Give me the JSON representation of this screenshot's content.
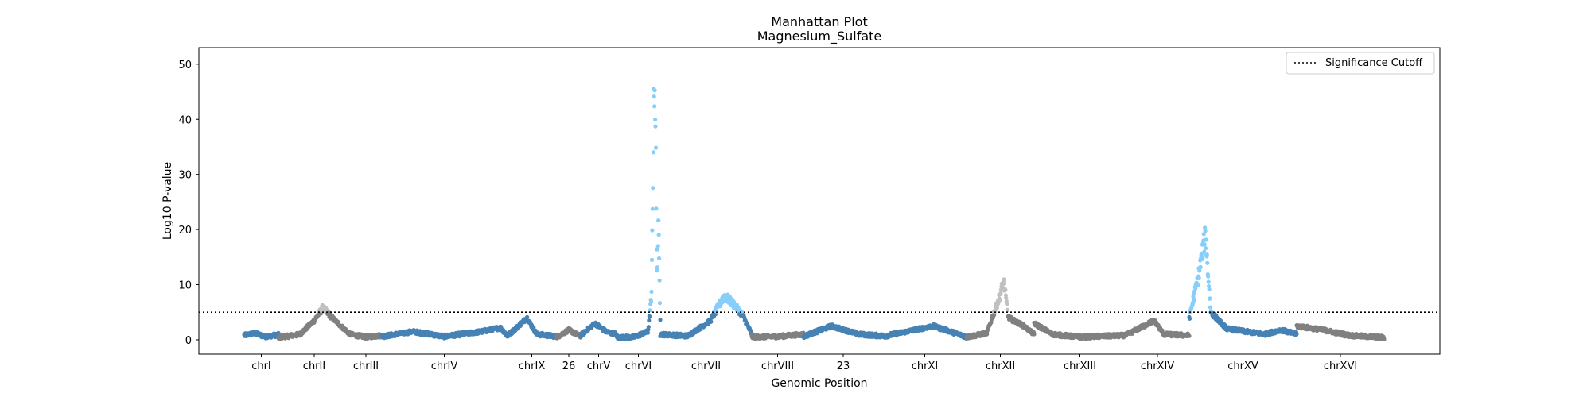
{
  "chart_data": {
    "type": "scatter",
    "title": "Manhattan Plot",
    "subtitle": "Magnesium_Sulfate",
    "xlabel": "Genomic Position",
    "ylabel": "Log10 P-value",
    "ylim": [
      -2.6,
      53
    ],
    "yticks": [
      0,
      10,
      20,
      30,
      40,
      50
    ],
    "grid": false,
    "legend": {
      "position": "top-right",
      "entries": [
        "Significance Cutoff"
      ]
    },
    "significance_cutoff": 5,
    "colors": {
      "odd_chromosome": "#4682b4",
      "even_chromosome": "#808080",
      "odd_significant": "#87cefa",
      "even_significant": "#c0c0c0",
      "cutoff_line": "#000000"
    },
    "chromosomes": [
      {
        "label": "chrI",
        "color_group": "odd",
        "profile": [
          [
            0,
            0.8
          ],
          [
            0.3,
            1.2
          ],
          [
            0.6,
            0.6
          ],
          [
            1,
            0.9
          ]
        ]
      },
      {
        "label": "chrII",
        "color_group": "even",
        "profile": [
          [
            0,
            0.4
          ],
          [
            0.3,
            1.0
          ],
          [
            0.5,
            3.5
          ],
          [
            0.62,
            5.8
          ],
          [
            0.75,
            4
          ],
          [
            1,
            1.0
          ]
        ]
      },
      {
        "label": "chrIII",
        "color_group": "even",
        "profile": [
          [
            0,
            1.0
          ],
          [
            0.5,
            0.5
          ],
          [
            1,
            0.8
          ]
        ]
      },
      {
        "label": "chrIV",
        "color_group": "odd",
        "profile": [
          [
            0,
            0.6
          ],
          [
            0.25,
            1.5
          ],
          [
            0.5,
            0.6
          ],
          [
            0.8,
            1.5
          ],
          [
            0.95,
            2.2
          ],
          [
            1,
            0.9
          ]
        ]
      },
      {
        "label": "chrIX",
        "color_group": "odd",
        "profile": [
          [
            0,
            0.6
          ],
          [
            0.25,
            2.6
          ],
          [
            0.4,
            4.0
          ],
          [
            0.6,
            1.0
          ],
          [
            1,
            0.6
          ]
        ]
      },
      {
        "label": "26",
        "color_group": "even",
        "profile": [
          [
            0,
            0.5
          ],
          [
            0.5,
            1.8
          ],
          [
            1,
            0.6
          ]
        ]
      },
      {
        "label": "chrV",
        "color_group": "odd",
        "profile": [
          [
            0,
            0.8
          ],
          [
            0.4,
            3.0
          ],
          [
            0.7,
            1.5
          ],
          [
            1,
            1.0
          ]
        ]
      },
      {
        "label": "chrVI",
        "color_group": "odd",
        "profile": [
          [
            0,
            0.4
          ],
          [
            0.4,
            0.5
          ],
          [
            0.72,
            1.5
          ],
          [
            0.8,
            8
          ],
          [
            0.86,
            48
          ],
          [
            0.89,
            42
          ],
          [
            0.92,
            12
          ],
          [
            0.96,
            20
          ],
          [
            1,
            4
          ]
        ]
      },
      {
        "label": "chrVII",
        "color_group": "odd",
        "profile": [
          [
            0,
            1.0
          ],
          [
            0.3,
            0.7
          ],
          [
            0.55,
            3.5
          ],
          [
            0.7,
            8.0
          ],
          [
            0.8,
            6.5
          ],
          [
            0.9,
            4.5
          ],
          [
            1,
            1.0
          ]
        ]
      },
      {
        "label": "chrVIII",
        "color_group": "even",
        "profile": [
          [
            0,
            0.5
          ],
          [
            0.5,
            0.6
          ],
          [
            1,
            1.0
          ]
        ]
      },
      {
        "label": "23",
        "color_group": "odd",
        "profile": [
          [
            0,
            0.6
          ],
          [
            0.35,
            2.5
          ],
          [
            0.7,
            1.0
          ],
          [
            1,
            0.7
          ]
        ]
      },
      {
        "label": "chrXI",
        "color_group": "odd",
        "profile": [
          [
            0,
            0.6
          ],
          [
            0.6,
            2.5
          ],
          [
            0.75,
            1.8
          ],
          [
            1,
            0.5
          ]
        ]
      },
      {
        "label": "chrXII",
        "color_group": "even",
        "profile": [
          [
            0,
            0.5
          ],
          [
            0.3,
            1.2
          ],
          [
            0.48,
            7.5
          ],
          [
            0.55,
            10.5
          ],
          [
            0.62,
            4
          ],
          [
            0.85,
            2.5
          ],
          [
            1,
            1.0
          ]
        ]
      },
      {
        "label": "chrXIII",
        "color_group": "even",
        "profile": [
          [
            0,
            3.0
          ],
          [
            0.2,
            1.0
          ],
          [
            0.5,
            0.5
          ],
          [
            1,
            0.8
          ]
        ]
      },
      {
        "label": "chrXIV",
        "color_group": "even",
        "profile": [
          [
            0,
            0.8
          ],
          [
            0.45,
            3.5
          ],
          [
            0.6,
            1.0
          ],
          [
            1,
            0.8
          ]
        ]
      },
      {
        "label": "chrXV",
        "color_group": "odd",
        "profile": [
          [
            0,
            4.0
          ],
          [
            0.08,
            11
          ],
          [
            0.15,
            19
          ],
          [
            0.2,
            5
          ],
          [
            0.35,
            2
          ],
          [
            0.7,
            1.0
          ],
          [
            0.85,
            1.8
          ],
          [
            1,
            1.0
          ]
        ]
      },
      {
        "label": "chrXVI",
        "color_group": "even",
        "profile": [
          [
            0,
            2.5
          ],
          [
            0.3,
            1.8
          ],
          [
            0.6,
            0.8
          ],
          [
            1,
            0.4
          ]
        ]
      }
    ]
  }
}
